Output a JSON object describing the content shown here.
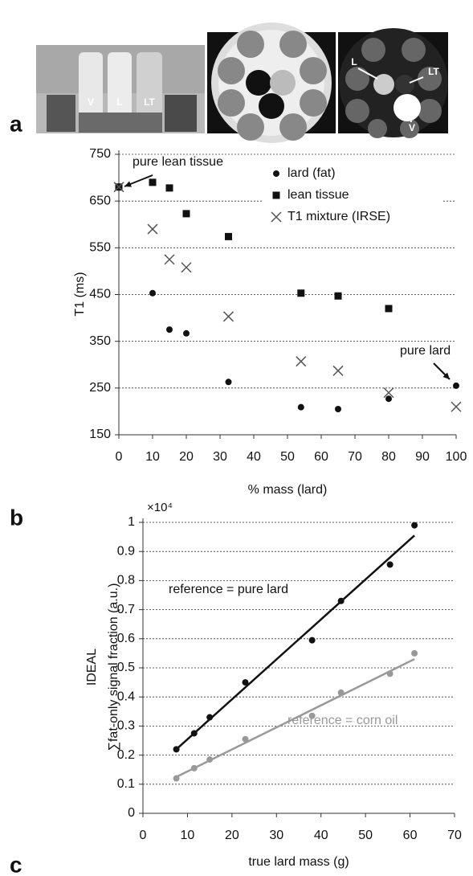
{
  "figure_a": {
    "panel_label": "a",
    "photo_labels": [
      "V",
      "L",
      "LT"
    ],
    "mri_labels": [
      "L",
      "LT",
      "V"
    ]
  },
  "chart_data": [
    {
      "type": "scatter",
      "panel_label": "b",
      "x_label": "% mass (lard)",
      "y_label": "T1 (ms)",
      "xlim": [
        0,
        100
      ],
      "xticks": [
        0,
        10,
        20,
        30,
        40,
        50,
        60,
        70,
        80,
        90,
        100
      ],
      "ylim": [
        150,
        750
      ],
      "yticks": [
        150,
        250,
        350,
        450,
        550,
        650,
        750
      ],
      "grid": true,
      "legend": "upper right",
      "annotations": [
        "pure lean tissue",
        "pure lard"
      ],
      "series": [
        {
          "name": "lard (fat)",
          "color": "#111111",
          "marker": "circle",
          "x": [
            10,
            15,
            20,
            32.5,
            54,
            65,
            80,
            100
          ],
          "values": [
            453,
            375,
            367,
            263,
            209,
            205,
            227,
            255
          ]
        },
        {
          "name": "lean tissue",
          "color": "#111111",
          "marker": "square",
          "x": [
            0,
            10,
            15,
            20,
            32.5,
            54,
            65,
            80
          ],
          "values": [
            680,
            690,
            678,
            623,
            574,
            453,
            447,
            420
          ]
        },
        {
          "name": "T1 mixture (IRSE)",
          "color": "#555555",
          "marker": "x",
          "x": [
            0,
            10,
            15,
            20,
            32.5,
            54,
            65,
            80,
            100
          ],
          "values": [
            680,
            590,
            525,
            508,
            403,
            307,
            287,
            240,
            210
          ]
        }
      ]
    },
    {
      "type": "scatter",
      "panel_label": "c",
      "x_label": "true lard mass (g)",
      "y_label": [
        "IDEAL",
        "∑fat-only signal fraction (a.u.)"
      ],
      "y_multiplier": "×10⁴",
      "xlim": [
        0,
        70
      ],
      "xticks": [
        0,
        10,
        20,
        30,
        40,
        50,
        60,
        70
      ],
      "ylim": [
        0,
        1
      ],
      "yticks": [
        0,
        0.1,
        0.2,
        0.3,
        0.4,
        0.5,
        0.6,
        0.7,
        0.8,
        0.9,
        1
      ],
      "grid": true,
      "series": [
        {
          "name": "reference = pure lard",
          "color": "#111111",
          "marker": "circle",
          "x": [
            7.5,
            11.5,
            15,
            23,
            38,
            44.5,
            55.5,
            61
          ],
          "values": [
            0.22,
            0.275,
            0.33,
            0.45,
            0.595,
            0.73,
            0.855,
            0.99
          ],
          "fit": {
            "x": [
              7.5,
              61
            ],
            "values": [
              0.22,
              0.955
            ]
          }
        },
        {
          "name": "reference = corn oil",
          "color": "#999999",
          "marker": "circle",
          "x": [
            7.5,
            11.5,
            15,
            23,
            38,
            44.5,
            55.5,
            61
          ],
          "values": [
            0.12,
            0.155,
            0.185,
            0.255,
            0.335,
            0.415,
            0.48,
            0.55
          ],
          "fit": {
            "x": [
              7.5,
              61
            ],
            "values": [
              0.125,
              0.53
            ]
          }
        }
      ]
    }
  ]
}
